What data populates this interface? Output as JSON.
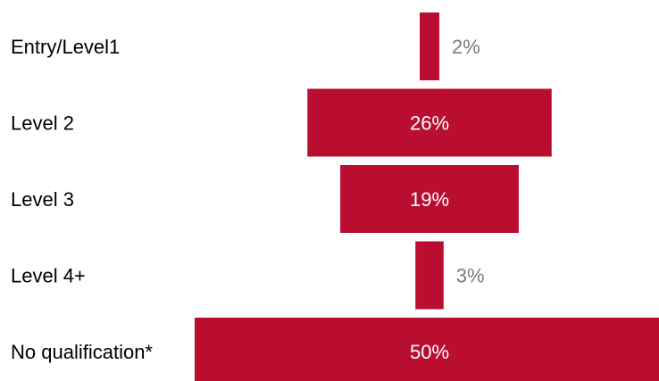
{
  "colors": {
    "bar": "#b90e2f",
    "label_inside": "#ffffff",
    "label_outside": "#7a7a7a",
    "category_text": "#000000"
  },
  "chart_data": {
    "type": "bar",
    "orientation": "horizontal-centered",
    "title": "",
    "xlabel": "",
    "ylabel": "",
    "grid": false,
    "legend": "none",
    "categories": [
      "Entry/Level1",
      "Level 2",
      "Level 3",
      "Level 4+",
      "No qualification*"
    ],
    "values": [
      2,
      26,
      19,
      3,
      50
    ],
    "value_labels": [
      "2%",
      "26%",
      "19%",
      "3%",
      "50%"
    ],
    "unit": "%"
  }
}
